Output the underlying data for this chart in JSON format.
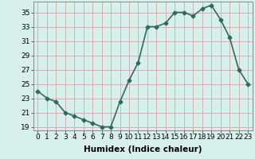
{
  "xlabel": "Humidex (Indice chaleur)",
  "x": [
    0,
    1,
    2,
    3,
    4,
    5,
    6,
    7,
    8,
    9,
    10,
    11,
    12,
    13,
    14,
    15,
    16,
    17,
    18,
    19,
    20,
    21,
    22,
    23
  ],
  "y": [
    24,
    23,
    22.5,
    21,
    20.5,
    20,
    19.5,
    19,
    19,
    22.5,
    25.5,
    28,
    33,
    33,
    33.5,
    35,
    35,
    34.5,
    35.5,
    36,
    34,
    31.5,
    27,
    25
  ],
  "line_color": "#2e6b5e",
  "marker": "D",
  "marker_size": 2.5,
  "bg_color": "#d8f0ec",
  "grid_color": "#d0a8a8",
  "ylim": [
    18.5,
    36.5
  ],
  "yticks": [
    19,
    21,
    23,
    25,
    27,
    29,
    31,
    33,
    35
  ],
  "xticks": [
    0,
    1,
    2,
    3,
    4,
    5,
    6,
    7,
    8,
    9,
    10,
    11,
    12,
    13,
    14,
    15,
    16,
    17,
    18,
    19,
    20,
    21,
    22,
    23
  ],
  "tick_fontsize": 6.5,
  "xlabel_fontsize": 7.5,
  "line_width": 1.2
}
